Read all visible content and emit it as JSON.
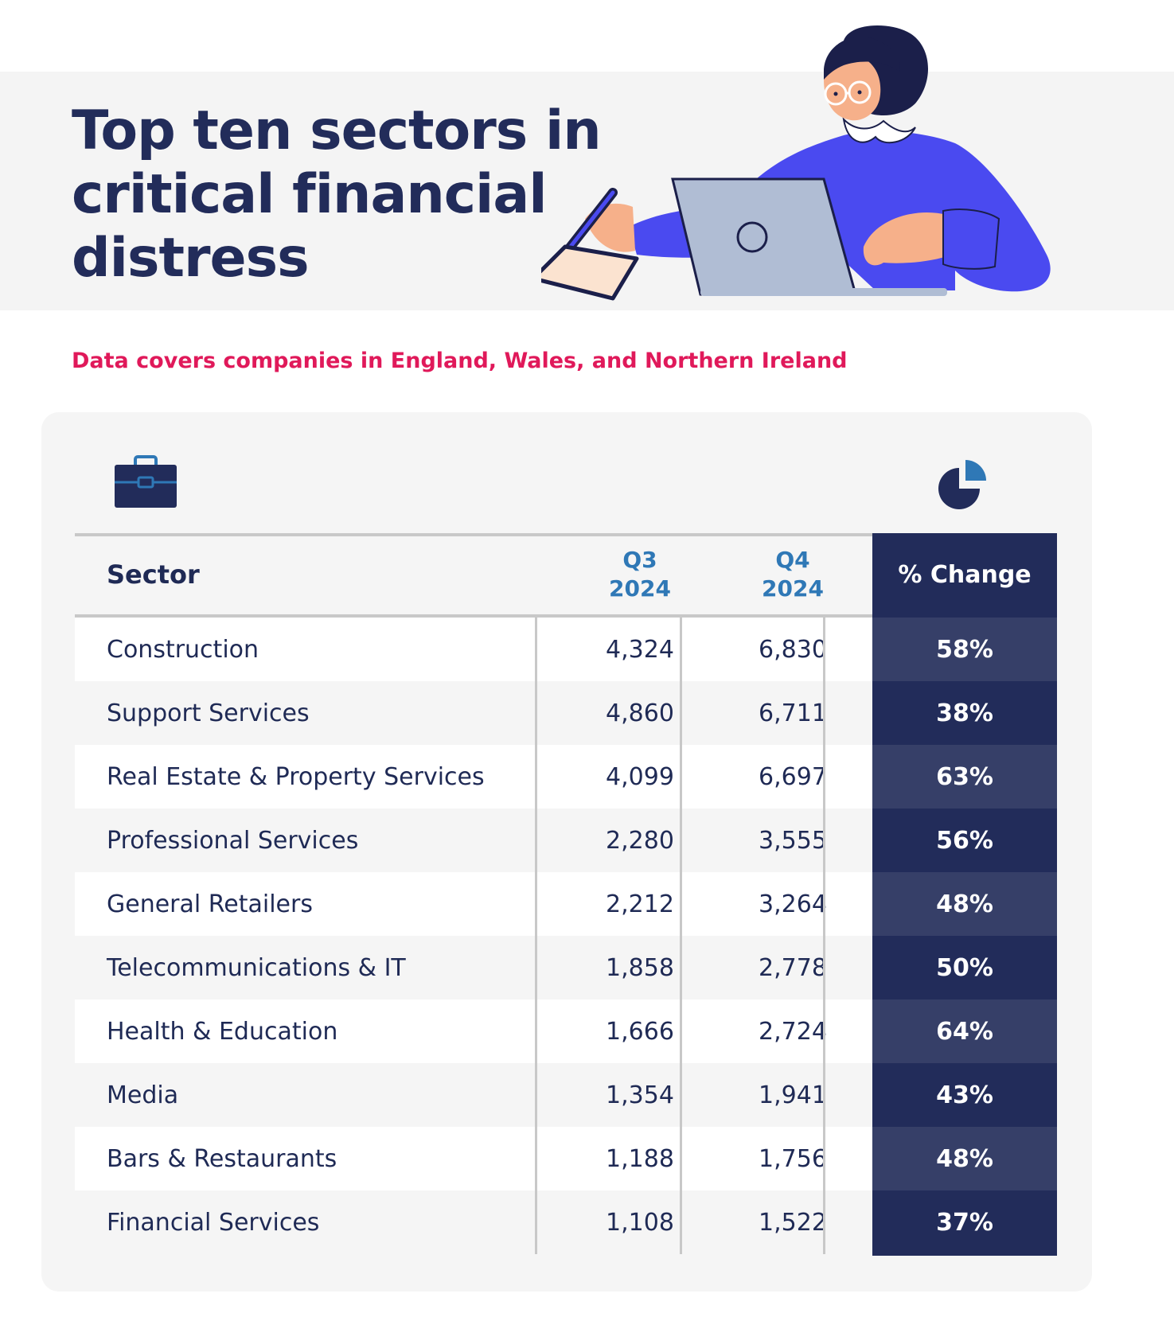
{
  "title": "Top ten sectors in critical financial distress",
  "subtitle": "Data covers companies in England, Wales, and Northern Ireland",
  "colors": {
    "navy": "#222c5a",
    "navy_light": "#363f68",
    "accent_pink": "#e0195a",
    "header_blue": "#2f78b6",
    "row_alt": "#f5f5f5",
    "sweater_blue": "#4a4af0"
  },
  "icons": {
    "sector_icon": "briefcase-icon",
    "change_icon": "pie-chart-icon",
    "illustration": "woman-at-laptop-illustration"
  },
  "chart_data": {
    "type": "table",
    "columns": [
      "Sector",
      "Q3 2024",
      "Q4 2024",
      "% Change"
    ],
    "header": {
      "sector": "Sector",
      "q3_line1": "Q3",
      "q3_line2": "2024",
      "q4_line1": "Q4",
      "q4_line2": "2024",
      "change": "% Change"
    },
    "rows": [
      {
        "sector": "Construction",
        "q3": "4,324",
        "q4": "6,830",
        "change": "58%"
      },
      {
        "sector": "Support Services",
        "q3": "4,860",
        "q4": "6,711",
        "change": "38%"
      },
      {
        "sector": "Real Estate & Property Services",
        "q3": "4,099",
        "q4": "6,697",
        "change": "63%"
      },
      {
        "sector": "Professional Services",
        "q3": "2,280",
        "q4": "3,555",
        "change": "56%"
      },
      {
        "sector": "General Retailers",
        "q3": "2,212",
        "q4": "3,264",
        "change": "48%"
      },
      {
        "sector": "Telecommunications & IT",
        "q3": "1,858",
        "q4": "2,778",
        "change": "50%"
      },
      {
        "sector": "Health & Education",
        "q3": "1,666",
        "q4": "2,724",
        "change": "64%"
      },
      {
        "sector": "Media",
        "q3": "1,354",
        "q4": "1,941",
        "change": "43%"
      },
      {
        "sector": "Bars & Restaurants",
        "q3": "1,188",
        "q4": "1,756",
        "change": "48%"
      },
      {
        "sector": "Financial Services",
        "q3": "1,108",
        "q4": "1,522",
        "change": "37%"
      }
    ]
  }
}
